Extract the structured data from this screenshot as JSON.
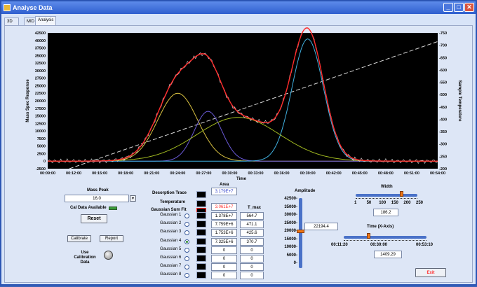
{
  "window": {
    "title": "Analyse Data"
  },
  "tabs": [
    "3D View",
    "MID",
    "Analysis"
  ],
  "colors": {
    "titlebar": "#2f5fcf",
    "plot_bg": "#000000",
    "accent_red": "#ff2a2a",
    "slider_orange": "#f07818"
  },
  "chart_data": {
    "type": "line",
    "xlabel": "Time",
    "ylabel": "Mass Spec Response",
    "y2label": "Sample Temperature",
    "x_ticks": [
      "00:09:00",
      "00:12:00",
      "00:15:00",
      "00:18:00",
      "00:21:00",
      "00:24:00",
      "00:27:00",
      "00:30:00",
      "00:33:00",
      "00:36:00",
      "00:39:00",
      "00:42:00",
      "00:45:00",
      "00:48:00",
      "00:51:00",
      "00:54:00"
    ],
    "xlim": [
      9,
      54
    ],
    "ylim": [
      -2500,
      42500
    ],
    "y_ticks": [
      -2500,
      0,
      2500,
      5000,
      7500,
      10000,
      12500,
      15000,
      17500,
      20000,
      22500,
      25000,
      27500,
      30000,
      32500,
      35000,
      37500,
      40000,
      42500
    ],
    "y2lim": [
      200,
      750
    ],
    "y2_ticks": [
      200,
      250,
      300,
      350,
      400,
      450,
      500,
      550,
      600,
      650,
      700,
      750
    ],
    "grid": false,
    "gaussians": [
      {
        "name": "Gaussian 1",
        "color": "#d8c040",
        "amplitude": 22500,
        "center": 24.0,
        "sigma": 2.3
      },
      {
        "name": "Gaussian 2",
        "color": "#6a5ad8",
        "amplitude": 16500,
        "center": 27.5,
        "sigma": 1.6
      },
      {
        "name": "Gaussian 3",
        "color": "#40b0e0",
        "amplitude": 40500,
        "center": 39.0,
        "sigma": 1.8
      },
      {
        "name": "Gaussian 4",
        "color": "#a0b820",
        "amplitude": 14500,
        "center": 31.0,
        "sigma": 4.8
      }
    ],
    "temperature": {
      "color": "#d8d8d8",
      "points": [
        [
          11.5,
          200
        ],
        [
          54,
          715
        ]
      ]
    }
  },
  "mass_peak": {
    "label": "Mass Peak",
    "value": "16.0",
    "cal_label": "Cal Data Available",
    "reset": "Reset"
  },
  "buttons": {
    "calibrate": "Calibrate",
    "report": "Report",
    "exit": "Exit"
  },
  "use_calibration": "Use Calibration Data",
  "legend": {
    "desorption": "Desorption Trace",
    "temperature": "Temperature",
    "gsum": "Gaussian Sum Fit"
  },
  "area": {
    "header": "Area",
    "tmax_header": "T_max",
    "desorption_value": "3.179E+7",
    "temperature_value": "3.061E+7"
  },
  "gaussian_rows": [
    {
      "label": "Gaussian 1",
      "area": "1.378E+7",
      "tmax": "564.7",
      "selected": false
    },
    {
      "label": "Gaussian 2",
      "area": "7.759E+6",
      "tmax": "471.1",
      "selected": false
    },
    {
      "label": "Gaussian 3",
      "area": "1.753E+6",
      "tmax": "425.6",
      "selected": false
    },
    {
      "label": "Gaussian 4",
      "area": "7.325E+6",
      "tmax": "370.7",
      "selected": true
    },
    {
      "label": "Gaussian 5",
      "area": "0",
      "tmax": "0",
      "selected": false
    },
    {
      "label": "Gaussian 6",
      "area": "0",
      "tmax": "0",
      "selected": false
    },
    {
      "label": "Gaussian 7",
      "area": "0",
      "tmax": "0",
      "selected": false
    },
    {
      "label": "Gaussian 8",
      "area": "0",
      "tmax": "0",
      "selected": false
    }
  ],
  "amplitude": {
    "label": "Amplitude",
    "ticks": [
      "42500-",
      "35000-",
      "30000-",
      "25000-",
      "20000-",
      "15000-",
      "10000-",
      "5000-",
      "0-"
    ],
    "value": "22194.4",
    "fraction": 0.52
  },
  "width": {
    "label": "Width",
    "ticks": [
      "1",
      "50",
      "100",
      "150",
      "200",
      "250"
    ],
    "value": "186.2",
    "fraction": 0.74
  },
  "time_axis": {
    "label": "Time (X-Axis)",
    "ticks": [
      "00:11:20",
      "00:30:00",
      "00:53:10"
    ],
    "value": "1409.29",
    "fraction": 0.3
  }
}
